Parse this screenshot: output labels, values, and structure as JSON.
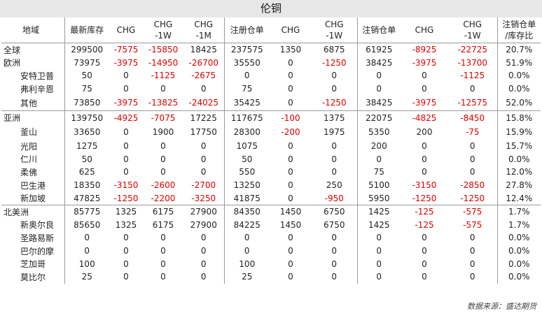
{
  "title": "伦铜",
  "headers": [
    "地域",
    "最新库存",
    "CHG",
    "CHG\n-1W",
    "CHG\n-1M",
    "注册仓单",
    "CHG",
    "CHG\n-1W",
    "注销仓单",
    "CHG",
    "CHG\n-1W",
    "注销仓单\n/库存比"
  ],
  "rows": [
    {
      "name": "全球",
      "cells": [
        "299500",
        "-7575",
        "-15850",
        "18425",
        "237575",
        "1350",
        "6875",
        "61925",
        "-8925",
        "-22725",
        "20.7%"
      ]
    },
    {
      "name": "欧洲",
      "cells": [
        "73975",
        "-3975",
        "-14950",
        "-26700",
        "35550",
        "0",
        "-1250",
        "38425",
        "-3975",
        "-13700",
        "51.9%"
      ]
    },
    {
      "name": "安特卫普",
      "cells": [
        "50",
        "0",
        "-1125",
        "-2675",
        "0",
        "0",
        "0",
        "0",
        "0",
        "-1125",
        "0.0%"
      ]
    },
    {
      "name": "弗利辛恩",
      "cells": [
        "75",
        "0",
        "0",
        "0",
        "75",
        "0",
        "0",
        "0",
        "0",
        "0",
        "0.0%"
      ]
    },
    {
      "name": "其他",
      "cells": [
        "73850",
        "-3975",
        "-13825",
        "-24025",
        "35425",
        "0",
        "-1250",
        "38425",
        "-3975",
        "-12575",
        "52.0%"
      ]
    },
    {
      "name": "亚洲",
      "cells": [
        "139750",
        "-4925",
        "-7075",
        "17225",
        "117675",
        "-100",
        "1375",
        "22075",
        "-4825",
        "-8450",
        "15.8%"
      ]
    },
    {
      "name": "釜山",
      "cells": [
        "33650",
        "0",
        "1900",
        "17750",
        "28300",
        "-200",
        "1975",
        "5350",
        "200",
        "-75",
        "15.9%"
      ]
    },
    {
      "name": "光阳",
      "cells": [
        "1275",
        "0",
        "0",
        "0",
        "1075",
        "0",
        "0",
        "200",
        "0",
        "0",
        "15.7%"
      ]
    },
    {
      "name": "仁川",
      "cells": [
        "50",
        "0",
        "0",
        "0",
        "50",
        "0",
        "0",
        "0",
        "0",
        "0",
        "0.0%"
      ]
    },
    {
      "name": "柔佛",
      "cells": [
        "625",
        "0",
        "0",
        "0",
        "550",
        "0",
        "0",
        "75",
        "0",
        "0",
        "12.0%"
      ]
    },
    {
      "name": "巴生港",
      "cells": [
        "18350",
        "-3150",
        "-2600",
        "-2700",
        "13250",
        "0",
        "250",
        "5100",
        "-3150",
        "-2850",
        "27.8%"
      ]
    },
    {
      "name": "新加坡",
      "cells": [
        "47825",
        "-1250",
        "-2200",
        "-3250",
        "41875",
        "0",
        "-950",
        "5950",
        "-1250",
        "-1250",
        "12.4%"
      ]
    },
    {
      "name": "北美洲",
      "cells": [
        "85775",
        "1325",
        "6175",
        "27900",
        "84350",
        "1450",
        "6750",
        "1425",
        "-125",
        "-575",
        "1.7%"
      ]
    },
    {
      "name": "新奥尔良",
      "cells": [
        "85650",
        "1325",
        "6175",
        "27900",
        "84225",
        "1450",
        "6750",
        "1425",
        "-125",
        "-575",
        "1.7%"
      ]
    },
    {
      "name": "圣路易斯",
      "cells": [
        "0",
        "0",
        "0",
        "0",
        "0",
        "0",
        "0",
        "0",
        "0",
        "0",
        "0.0%"
      ]
    },
    {
      "name": "巴尔的摩",
      "cells": [
        "0",
        "0",
        "0",
        "0",
        "0",
        "0",
        "0",
        "0",
        "0",
        "0",
        "0.0%"
      ]
    },
    {
      "name": "芝加哥",
      "cells": [
        "100",
        "0",
        "0",
        "0",
        "100",
        "0",
        "0",
        "0",
        "0",
        "0",
        "0.0%"
      ]
    },
    {
      "name": "莫比尔",
      "cells": [
        "25",
        "0",
        "0",
        "0",
        "25",
        "0",
        "0",
        "0",
        "0",
        "0",
        "0.0%"
      ]
    }
  ],
  "source": "数据来源：盛达期货"
}
